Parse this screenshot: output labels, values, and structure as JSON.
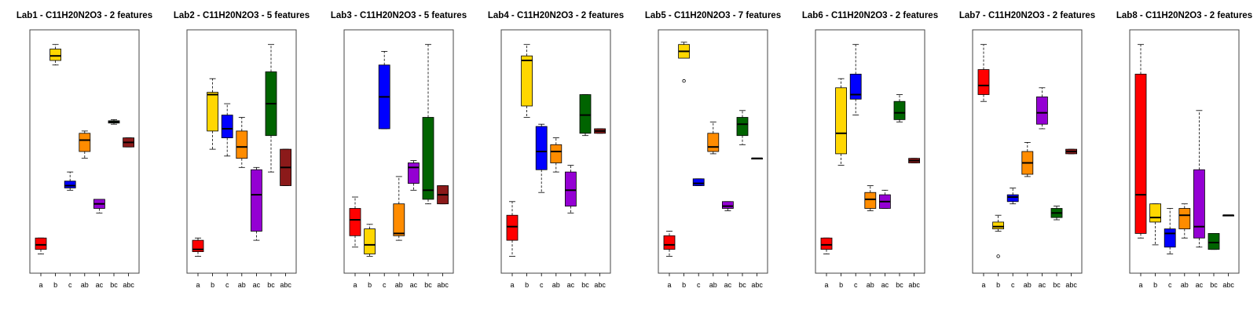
{
  "colors": {
    "a": "#ff0000",
    "b": "#ffd700",
    "c": "#0000ff",
    "ab": "#ff8c00",
    "ac": "#9400d3",
    "bc": "#006400",
    "abc": "#8b1a1a"
  },
  "chart_data": [
    {
      "type": "boxplot",
      "title": "Lab1 - C11H20N2O3 - 2 features",
      "categories": [
        "a",
        "b",
        "c",
        "ab",
        "ac",
        "bc",
        "abc"
      ],
      "ylim": [
        0,
        100
      ],
      "boxes": [
        {
          "min": 5,
          "q1": 7,
          "median": 9,
          "q3": 12,
          "max": 12,
          "outliers": []
        },
        {
          "min": 88,
          "q1": 90,
          "median": 92,
          "q3": 95,
          "max": 97,
          "outliers": []
        },
        {
          "min": 33,
          "q1": 34,
          "median": 35,
          "q3": 37,
          "max": 41,
          "outliers": []
        },
        {
          "min": 47,
          "q1": 50,
          "median": 55,
          "q3": 58,
          "max": 59,
          "outliers": []
        },
        {
          "min": 23,
          "q1": 25,
          "median": 27,
          "q3": 29,
          "max": 29,
          "outliers": []
        },
        {
          "min": 62,
          "q1": 62.5,
          "median": 63,
          "q3": 63.5,
          "max": 64,
          "outliers": []
        },
        {
          "min": 52,
          "q1": 52,
          "median": 54,
          "q3": 56,
          "max": 56,
          "outliers": []
        }
      ]
    },
    {
      "type": "boxplot",
      "title": "Lab2 - C11H20N2O3 - 5 features",
      "categories": [
        "a",
        "b",
        "c",
        "ab",
        "ac",
        "bc",
        "abc"
      ],
      "ylim": [
        0,
        100
      ],
      "boxes": [
        {
          "min": 4,
          "q1": 6,
          "median": 7,
          "q3": 11,
          "max": 12,
          "outliers": []
        },
        {
          "min": 51,
          "q1": 59,
          "median": 75,
          "q3": 76,
          "max": 82,
          "outliers": []
        },
        {
          "min": 48,
          "q1": 56,
          "median": 60,
          "q3": 66,
          "max": 71,
          "outliers": []
        },
        {
          "min": 43,
          "q1": 47,
          "median": 52,
          "q3": 59,
          "max": 65,
          "outliers": []
        },
        {
          "min": 11,
          "q1": 15,
          "median": 31,
          "q3": 42,
          "max": 43,
          "outliers": []
        },
        {
          "min": 41,
          "q1": 57,
          "median": 71,
          "q3": 85,
          "max": 97,
          "outliers": []
        },
        {
          "min": 35,
          "q1": 35,
          "median": 43,
          "q3": 51,
          "max": 51,
          "outliers": []
        }
      ]
    },
    {
      "type": "boxplot",
      "title": "Lab3 - C11H20N2O3 - 5 features",
      "categories": [
        "a",
        "b",
        "c",
        "ab",
        "ac",
        "bc",
        "abc"
      ],
      "ylim": [
        0,
        100
      ],
      "boxes": [
        {
          "min": 8,
          "q1": 13,
          "median": 20,
          "q3": 25,
          "max": 30,
          "outliers": []
        },
        {
          "min": 4,
          "q1": 5,
          "median": 9,
          "q3": 16,
          "max": 18,
          "outliers": []
        },
        {
          "min": 60,
          "q1": 60,
          "median": 74,
          "q3": 88,
          "max": 94,
          "outliers": []
        },
        {
          "min": 11,
          "q1": 13,
          "median": 14,
          "q3": 27,
          "max": 39,
          "outliers": []
        },
        {
          "min": 33,
          "q1": 36,
          "median": 43,
          "q3": 45,
          "max": 46,
          "outliers": []
        },
        {
          "min": 27,
          "q1": 29,
          "median": 33,
          "q3": 65,
          "max": 97,
          "outliers": []
        },
        {
          "min": 27,
          "q1": 27,
          "median": 31,
          "q3": 35,
          "max": 35,
          "outliers": []
        }
      ]
    },
    {
      "type": "boxplot",
      "title": "Lab4 - C11H20N2O3 - 2 features",
      "categories": [
        "a",
        "b",
        "c",
        "ab",
        "ac",
        "bc",
        "abc"
      ],
      "ylim": [
        0,
        100
      ],
      "boxes": [
        {
          "min": 4,
          "q1": 11,
          "median": 17,
          "q3": 22,
          "max": 28,
          "outliers": []
        },
        {
          "min": 65,
          "q1": 70,
          "median": 90,
          "q3": 92,
          "max": 97,
          "outliers": []
        },
        {
          "min": 32,
          "q1": 42,
          "median": 50,
          "q3": 61,
          "max": 62,
          "outliers": []
        },
        {
          "min": 41,
          "q1": 45,
          "median": 50,
          "q3": 53,
          "max": 56,
          "outliers": []
        },
        {
          "min": 23,
          "q1": 26,
          "median": 33,
          "q3": 41,
          "max": 44,
          "outliers": []
        },
        {
          "min": 57,
          "q1": 58,
          "median": 66,
          "q3": 75,
          "max": 75,
          "outliers": []
        },
        {
          "min": 58,
          "q1": 58,
          "median": 59,
          "q3": 60,
          "max": 60,
          "outliers": []
        }
      ]
    },
    {
      "type": "boxplot",
      "title": "Lab5 - C11H20N2O3 - 7 features",
      "categories": [
        "a",
        "b",
        "c",
        "ab",
        "ac",
        "bc",
        "abc"
      ],
      "ylim": [
        0,
        100
      ],
      "boxes": [
        {
          "min": 4,
          "q1": 7,
          "median": 9,
          "q3": 13,
          "max": 15,
          "outliers": []
        },
        {
          "min": 91,
          "q1": 91,
          "median": 94,
          "q3": 97,
          "max": 98,
          "outliers": [
            81
          ]
        },
        {
          "min": 35,
          "q1": 35,
          "median": 36,
          "q3": 38,
          "max": 38,
          "outliers": []
        },
        {
          "min": 49,
          "q1": 50,
          "median": 52,
          "q3": 58,
          "max": 63,
          "outliers": []
        },
        {
          "min": 24,
          "q1": 25,
          "median": 26,
          "q3": 28,
          "max": 28,
          "outliers": []
        },
        {
          "min": 53,
          "q1": 57,
          "median": 62,
          "q3": 65,
          "max": 68,
          "outliers": []
        },
        {
          "min": 47,
          "q1": 47,
          "median": 47,
          "q3": 47,
          "max": 47,
          "outliers": []
        }
      ]
    },
    {
      "type": "boxplot",
      "title": "Lab6 - C11H20N2O3 - 2 features",
      "categories": [
        "a",
        "b",
        "c",
        "ab",
        "ac",
        "bc",
        "abc"
      ],
      "ylim": [
        0,
        100
      ],
      "boxes": [
        {
          "min": 5,
          "q1": 7,
          "median": 9,
          "q3": 12,
          "max": 12,
          "outliers": []
        },
        {
          "min": 44,
          "q1": 49,
          "median": 58,
          "q3": 78,
          "max": 82,
          "outliers": []
        },
        {
          "min": 66,
          "q1": 73,
          "median": 75,
          "q3": 84,
          "max": 97,
          "outliers": []
        },
        {
          "min": 24,
          "q1": 25,
          "median": 29,
          "q3": 32,
          "max": 35,
          "outliers": []
        },
        {
          "min": 25,
          "q1": 25,
          "median": 28,
          "q3": 31,
          "max": 33,
          "outliers": []
        },
        {
          "min": 63,
          "q1": 64,
          "median": 67,
          "q3": 72,
          "max": 75,
          "outliers": []
        },
        {
          "min": 45,
          "q1": 45,
          "median": 46,
          "q3": 47,
          "max": 47,
          "outliers": []
        }
      ]
    },
    {
      "type": "boxplot",
      "title": "Lab7 - C11H20N2O3 - 2 features",
      "categories": [
        "a",
        "b",
        "c",
        "ab",
        "ac",
        "bc",
        "abc"
      ],
      "ylim": [
        0,
        100
      ],
      "boxes": [
        {
          "min": 72,
          "q1": 75,
          "median": 79,
          "q3": 86,
          "max": 97,
          "outliers": []
        },
        {
          "min": 15,
          "q1": 16,
          "median": 17,
          "q3": 19,
          "max": 22,
          "outliers": [
            4
          ]
        },
        {
          "min": 27,
          "q1": 28,
          "median": 30,
          "q3": 31,
          "max": 34,
          "outliers": []
        },
        {
          "min": 39,
          "q1": 40,
          "median": 45,
          "q3": 50,
          "max": 54,
          "outliers": []
        },
        {
          "min": 60,
          "q1": 62,
          "median": 67,
          "q3": 74,
          "max": 78,
          "outliers": []
        },
        {
          "min": 20,
          "q1": 21,
          "median": 23,
          "q3": 25,
          "max": 26,
          "outliers": []
        },
        {
          "min": 49,
          "q1": 49,
          "median": 50,
          "q3": 51,
          "max": 51,
          "outliers": []
        }
      ]
    },
    {
      "type": "boxplot",
      "title": "Lab8 - C11H20N2O3 - 2 features",
      "categories": [
        "a",
        "b",
        "c",
        "ab",
        "ac",
        "bc",
        "abc"
      ],
      "ylim": [
        0,
        100
      ],
      "boxes": [
        {
          "min": 12,
          "q1": 14,
          "median": 31,
          "q3": 84,
          "max": 97,
          "outliers": []
        },
        {
          "min": 9,
          "q1": 19,
          "median": 21,
          "q3": 27,
          "max": 27,
          "outliers": []
        },
        {
          "min": 5,
          "q1": 8,
          "median": 14,
          "q3": 16,
          "max": 25,
          "outliers": []
        },
        {
          "min": 12,
          "q1": 16,
          "median": 22,
          "q3": 25,
          "max": 27,
          "outliers": []
        },
        {
          "min": 8,
          "q1": 12,
          "median": 17,
          "q3": 42,
          "max": 68,
          "outliers": []
        },
        {
          "min": 7,
          "q1": 7,
          "median": 10,
          "q3": 14,
          "max": 14,
          "outliers": []
        },
        {
          "min": 22,
          "q1": 22,
          "median": 22,
          "q3": 22,
          "max": 22,
          "outliers": []
        }
      ]
    }
  ]
}
